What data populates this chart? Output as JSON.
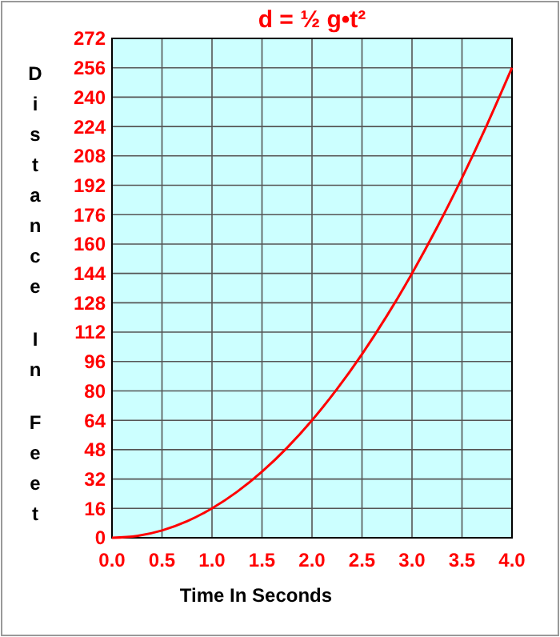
{
  "chart_data": {
    "type": "line",
    "title": "d = ½ g•t²",
    "xlabel": "Time In Seconds",
    "ylabel": "Distance In Feet",
    "x": [
      0,
      0.25,
      0.5,
      0.75,
      1,
      1.25,
      1.5,
      1.75,
      2,
      2.25,
      2.5,
      2.75,
      3,
      3.25,
      3.5,
      3.75,
      4
    ],
    "series": [
      {
        "color": "#ff0000",
        "values": [
          0,
          1,
          4,
          9,
          16,
          25,
          36,
          49,
          64,
          81,
          100,
          121,
          144,
          169,
          196,
          225,
          256
        ]
      }
    ],
    "xlim": [
      0,
      4
    ],
    "xticks": [
      {
        "value": 0,
        "label": "0.0"
      },
      0.5,
      {
        "value": 1,
        "label": "1.0"
      },
      1.5,
      {
        "value": 2,
        "label": "2.0"
      },
      2.5,
      {
        "value": 3,
        "label": "3.0"
      },
      3.5,
      {
        "value": 4,
        "label": "4.0"
      }
    ],
    "ylim": [
      0,
      272
    ],
    "yticks": [
      0,
      16,
      32,
      48,
      64,
      80,
      96,
      112,
      128,
      144,
      160,
      176,
      192,
      208,
      224,
      240,
      256,
      272
    ],
    "grid": true,
    "marker": "none",
    "line_style": "solid"
  }
}
